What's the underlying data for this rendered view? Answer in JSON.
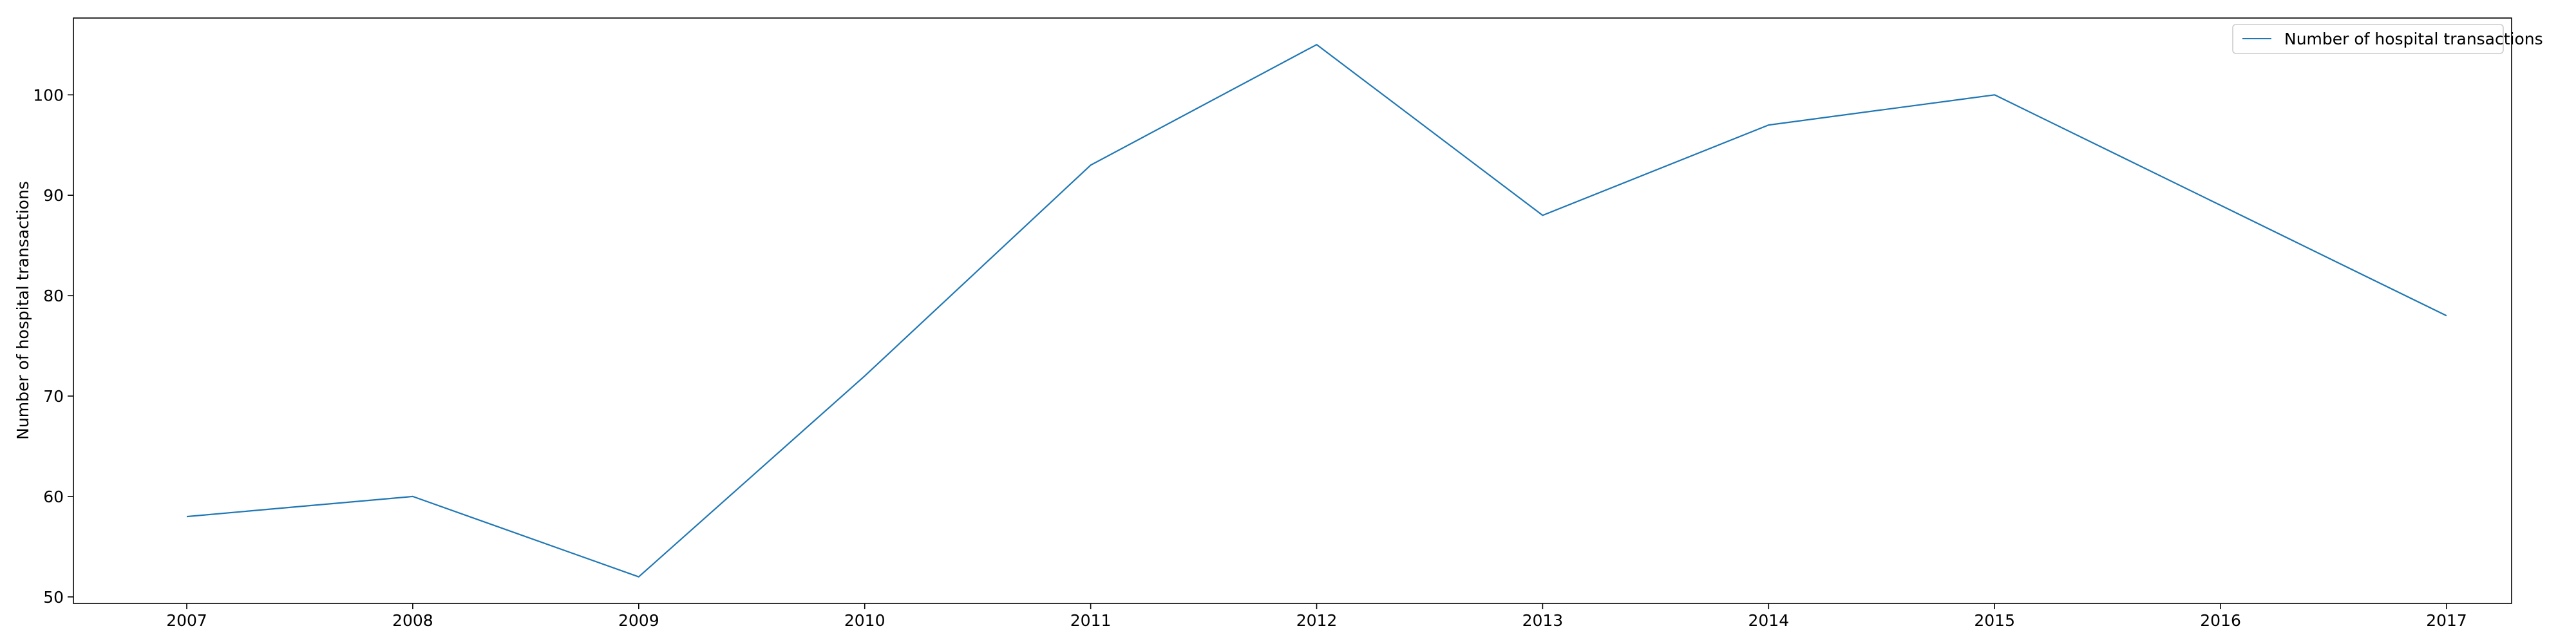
{
  "chart_data": {
    "type": "line",
    "title": "",
    "xlabel": "",
    "ylabel": "Number of hospital transactions",
    "x": [
      "2007",
      "2008",
      "2009",
      "2010",
      "2011",
      "2012",
      "2013",
      "2014",
      "2015",
      "2016",
      "2017"
    ],
    "series": [
      {
        "name": "Number of hospital transactions",
        "values": [
          58,
          60,
          52,
          72,
          93,
          105,
          88,
          97,
          100,
          89,
          78
        ],
        "color": "#1f77b4"
      }
    ],
    "yticks": [
      50,
      60,
      70,
      80,
      90,
      100
    ],
    "ylim": [
      49.35,
      107.65
    ],
    "grid": false,
    "legend_position": "top-right"
  }
}
